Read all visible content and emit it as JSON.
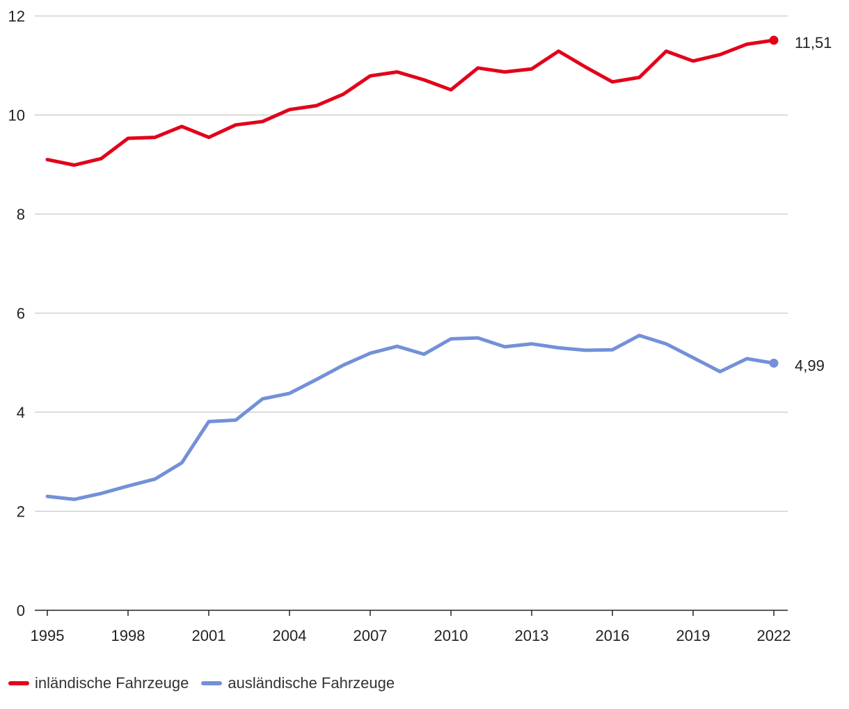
{
  "chart_data": {
    "type": "line",
    "title": "",
    "xlabel": "",
    "ylabel": "",
    "ylim": [
      0,
      12
    ],
    "yticks": [
      0,
      2,
      4,
      6,
      8,
      10,
      12
    ],
    "xticks": [
      1995,
      1998,
      2001,
      2004,
      2007,
      2010,
      2013,
      2016,
      2019,
      2022
    ],
    "grid": true,
    "legend_position": "bottom-left",
    "x": [
      1995,
      1996,
      1997,
      1998,
      1999,
      2000,
      2001,
      2002,
      2003,
      2004,
      2005,
      2006,
      2007,
      2008,
      2009,
      2010,
      2011,
      2012,
      2013,
      2014,
      2015,
      2016,
      2017,
      2018,
      2019,
      2020,
      2021,
      2022
    ],
    "series": [
      {
        "name": "inländische Fahrzeuge",
        "color": "#e2001a",
        "end_label": "11,51",
        "values": [
          9.1,
          8.99,
          9.12,
          9.53,
          9.55,
          9.77,
          9.55,
          9.8,
          9.87,
          10.11,
          10.19,
          10.42,
          10.79,
          10.87,
          10.71,
          10.51,
          10.95,
          10.87,
          10.93,
          11.29,
          10.97,
          10.67,
          10.76,
          11.29,
          11.09,
          11.22,
          11.43,
          11.51
        ]
      },
      {
        "name": "ausländische Fahrzeuge",
        "color": "#7390d8",
        "end_label": "4,99",
        "values": [
          2.3,
          2.24,
          2.36,
          2.51,
          2.65,
          2.98,
          3.81,
          3.84,
          4.27,
          4.38,
          4.66,
          4.95,
          5.19,
          5.33,
          5.17,
          5.48,
          5.5,
          5.32,
          5.38,
          5.3,
          5.25,
          5.26,
          5.55,
          5.38,
          5.1,
          4.82,
          5.08,
          4.99
        ]
      }
    ]
  }
}
